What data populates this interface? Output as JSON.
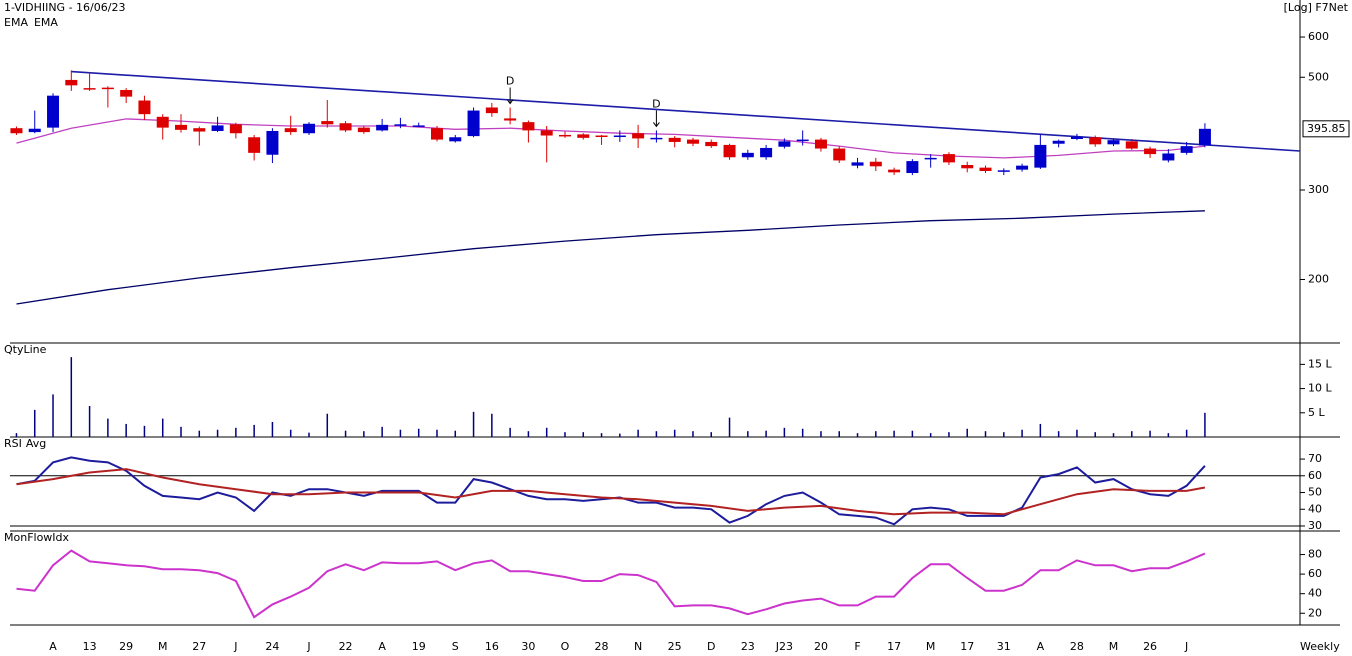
{
  "chart_data": [
    {
      "type": "candlestick",
      "title": "1-VIDHIING - 16/06/23",
      "subtitle": "[Log] F7Net",
      "x_label": "Weekly",
      "log": true,
      "xlim": [
        -0.9,
        70.2
      ],
      "ylim": [
        150,
        700
      ],
      "yticks": [
        200,
        300,
        500,
        600
      ],
      "up_color": "#0000cc",
      "down_color": "#dd0000",
      "categories": [
        null,
        null,
        "A",
        null,
        "13",
        null,
        "29",
        null,
        "M",
        null,
        "27",
        null,
        "J",
        null,
        "24",
        null,
        "J",
        null,
        "22",
        null,
        "A",
        null,
        "19",
        null,
        "S",
        null,
        "16",
        null,
        "30",
        null,
        "O",
        null,
        "28",
        null,
        "N",
        null,
        "25",
        null,
        "D",
        null,
        "23",
        null,
        "J23",
        null,
        "20",
        null,
        "F",
        null,
        "17",
        null,
        "M",
        null,
        "17",
        null,
        "31",
        null,
        "A",
        null,
        "28",
        null,
        "M",
        null,
        "26",
        null,
        "J",
        null
      ],
      "open": [
        397,
        390,
        398,
        494,
        476,
        477,
        472,
        450,
        418,
        403,
        397,
        392,
        404,
        381,
        352,
        397,
        388,
        410,
        406,
        398,
        393,
        402,
        401,
        397,
        374,
        383,
        436,
        415,
        408,
        393,
        385,
        386,
        384,
        382,
        388,
        378,
        380,
        377,
        373,
        368,
        348,
        348,
        365,
        375,
        377,
        362,
        335,
        341,
        329,
        324,
        346,
        353,
        336,
        332,
        327,
        329,
        332,
        370,
        378,
        381,
        369,
        374,
        362,
        343,
        355,
        367
      ],
      "high": [
        400,
        430,
        465,
        516,
        512,
        480,
        476,
        460,
        423,
        423,
        400,
        418,
        407,
        385,
        397,
        420,
        408,
        451,
        410,
        401,
        414,
        416,
        407,
        401,
        385,
        436,
        445,
        436,
        411,
        401,
        391,
        388,
        385,
        393,
        403,
        393,
        383,
        380,
        377,
        370,
        360,
        368,
        379,
        393,
        380,
        366,
        347,
        347,
        332,
        345,
        353,
        356,
        341,
        335,
        331,
        338,
        386,
        377,
        387,
        384,
        379,
        378,
        365,
        361,
        373,
        406
      ],
      "low": [
        385,
        388,
        390,
        470,
        470,
        436,
        445,
        412,
        377,
        389,
        367,
        390,
        379,
        343,
        339,
        385,
        385,
        398,
        390,
        387,
        391,
        397,
        399,
        374,
        372,
        381,
        418,
        404,
        372,
        340,
        380,
        377,
        368,
        373,
        363,
        372,
        364,
        366,
        363,
        344,
        344,
        344,
        362,
        367,
        357,
        339,
        331,
        327,
        321,
        321,
        332,
        336,
        325,
        324,
        321,
        326,
        330,
        364,
        376,
        365,
        366,
        360,
        347,
        340,
        352,
        364
      ],
      "close": [
        388,
        396,
        460,
        482,
        474,
        475,
        458,
        423,
        398,
        394,
        391,
        402,
        388,
        355,
        392,
        390,
        405,
        404,
        393,
        390,
        403,
        404,
        402,
        377,
        381,
        430,
        425,
        411,
        393,
        384,
        383,
        380,
        382,
        384,
        379,
        380,
        373,
        370,
        366,
        348,
        355,
        363,
        374,
        377,
        362,
        343,
        340,
        334,
        325,
        342,
        347,
        340,
        331,
        327,
        328,
        335,
        368,
        375,
        382,
        369,
        376,
        362,
        353,
        354,
        366,
        395.85
      ],
      "series": [
        {
          "name": "EMA",
          "color": "#000066",
          "x": [
            0,
            5,
            10,
            15,
            20,
            25,
            30,
            35,
            40,
            45,
            50,
            55,
            60,
            65
          ],
          "values": [
            179,
            191,
            201.5,
            211,
            220,
            230,
            238,
            245,
            250,
            256,
            261,
            264,
            269,
            273
          ]
        },
        {
          "name": "EMA",
          "color": "#c040c0",
          "x": [
            0,
            3,
            6,
            9,
            12,
            15,
            18,
            21,
            24,
            27,
            30,
            33,
            36,
            39,
            42,
            45,
            48,
            51,
            54,
            57,
            60,
            63,
            65
          ],
          "values": [
            371,
            397,
            414,
            410,
            404,
            401,
            401,
            401,
            395,
            397,
            392,
            388,
            386,
            381,
            376,
            366,
            355,
            350,
            347,
            351,
            358,
            359,
            366
          ]
        }
      ],
      "trendline": {
        "color": "#1c1ca8",
        "x": [
          3,
          70.2
        ],
        "values": [
          513,
          358
        ]
      },
      "annotations": [
        {
          "text": "D",
          "x": 27
        },
        {
          "text": "D",
          "x": 35
        }
      ]
    },
    {
      "type": "bar",
      "title": "QtyLine",
      "color": "#000080",
      "ylim": [
        0,
        19
      ],
      "yticks": [
        {
          "value": 5,
          "label": "5 L"
        },
        {
          "value": 10,
          "label": "10 L"
        },
        {
          "value": 15,
          "label": "15 L"
        }
      ],
      "values": [
        0.8,
        5.6,
        8.8,
        16.5,
        6.4,
        3.8,
        2.7,
        2.3,
        3.8,
        2.1,
        1.3,
        1.5,
        1.9,
        2.5,
        3.1,
        1.5,
        0.9,
        4.8,
        1.3,
        1.2,
        2.1,
        1.5,
        1.7,
        1.5,
        1.3,
        5.2,
        4.8,
        1.9,
        1.2,
        1.9,
        1.0,
        1.0,
        0.8,
        0.7,
        1.5,
        1.2,
        1.5,
        1.2,
        1.0,
        4.0,
        1.2,
        1.3,
        1.9,
        1.7,
        1.2,
        1.2,
        0.8,
        1.2,
        1.3,
        1.3,
        0.8,
        1.0,
        1.7,
        1.2,
        1.0,
        1.5,
        2.7,
        1.2,
        1.5,
        1.0,
        0.8,
        1.2,
        1.3,
        0.8,
        1.5,
        5.0
      ]
    },
    {
      "type": "line",
      "ylim": [
        27,
        82
      ],
      "yticks": [
        30,
        40,
        50,
        60,
        70
      ],
      "ref_lines": [
        60,
        30
      ],
      "series": [
        {
          "name": "RSI",
          "color": "#1c1c9c",
          "values": [
            55,
            57,
            68,
            71,
            69,
            68,
            63,
            54,
            48,
            47,
            46,
            50,
            47,
            39,
            50,
            48,
            52,
            52,
            50,
            48,
            51,
            51,
            51,
            44,
            44,
            58,
            56,
            52,
            48,
            46,
            46,
            45,
            46,
            47,
            44,
            44,
            41,
            41,
            40,
            32,
            36,
            43,
            48,
            50,
            44,
            37,
            36,
            35,
            31,
            40,
            41,
            40,
            36,
            36,
            36,
            41,
            59,
            61,
            65,
            56,
            58,
            52,
            49,
            48,
            54,
            66
          ]
        },
        {
          "name": "Avg",
          "color": "#b22222",
          "x": [
            0,
            2,
            4,
            6,
            8,
            10,
            12,
            14,
            16,
            18,
            20,
            22,
            24,
            26,
            28,
            30,
            32,
            34,
            36,
            38,
            40,
            42,
            44,
            46,
            48,
            50,
            52,
            54,
            56,
            58,
            60,
            62,
            64,
            65
          ],
          "values": [
            55,
            58,
            62,
            64,
            59,
            55,
            52,
            49,
            49,
            50,
            50,
            50,
            47,
            51,
            51,
            49,
            47,
            46,
            44,
            42,
            39,
            41,
            42,
            39,
            37,
            38,
            38,
            37,
            43,
            49,
            52,
            51,
            51,
            53
          ]
        }
      ]
    },
    {
      "type": "line",
      "ylim": [
        8,
        102
      ],
      "yticks": [
        20,
        40,
        60,
        80
      ],
      "series": [
        {
          "name": "MonFlowIdx",
          "color": "#cc33cc",
          "values": [
            45,
            43,
            69,
            84,
            73,
            71,
            69,
            68,
            65,
            65,
            64,
            61,
            53,
            16,
            29,
            37,
            46,
            63,
            70,
            64,
            72,
            71,
            71,
            73,
            64,
            71,
            74,
            63,
            63,
            60,
            57,
            53,
            53,
            60,
            59,
            52,
            27,
            28,
            28,
            25,
            19,
            24,
            30,
            33,
            35,
            28,
            28,
            37,
            37,
            56,
            70,
            70,
            56,
            43,
            43,
            49,
            64,
            64,
            74,
            69,
            69,
            63,
            66,
            66,
            73,
            81
          ]
        }
      ]
    }
  ]
}
